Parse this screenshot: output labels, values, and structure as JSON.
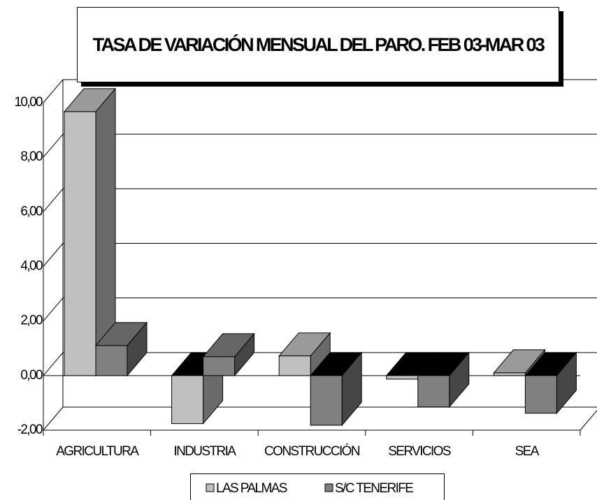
{
  "chart_data": {
    "type": "bar3d",
    "title": "TASA DE VARIACIÓN MENSUAL DEL PARO. FEB 03-MAR 03",
    "categories": [
      "AGRICULTURA",
      "INDUSTRIA",
      "CONSTRUCCIÓN",
      "SERVICIOS",
      "SEA"
    ],
    "series": [
      {
        "name": "LAS PALMAS",
        "color": "#c0c0c0",
        "values": [
          9.67,
          -1.76,
          0.72,
          -0.13,
          0.1
        ]
      },
      {
        "name": "S/C TENERIFE",
        "color": "#808080",
        "values": [
          1.1,
          0.69,
          -1.82,
          -1.15,
          -1.38
        ]
      }
    ],
    "ylim": [
      -2,
      10
    ],
    "yticks": [
      {
        "value": -2,
        "label": "-2,00"
      },
      {
        "value": 0,
        "label": "0,00"
      },
      {
        "value": 2,
        "label": "2,00"
      },
      {
        "value": 4,
        "label": "4,00"
      },
      {
        "value": 6,
        "label": "6,00"
      },
      {
        "value": 8,
        "label": "8,00"
      },
      {
        "value": 10,
        "label": "10,00"
      }
    ],
    "grid": true
  }
}
